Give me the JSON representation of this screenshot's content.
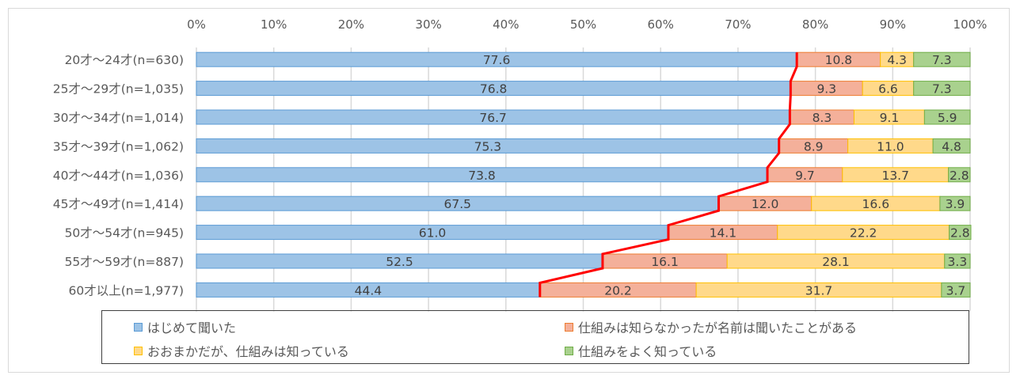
{
  "chart_data": {
    "type": "bar",
    "orientation": "horizontal",
    "stacked": true,
    "percent": true,
    "xlim": [
      0,
      100
    ],
    "x_ticks": [
      "0%",
      "10%",
      "20%",
      "30%",
      "40%",
      "50%",
      "60%",
      "70%",
      "80%",
      "90%",
      "100%"
    ],
    "categories": [
      "20才〜24才(n=630)",
      "25才〜29才(n=1,035)",
      "30才〜34才(n=1,014)",
      "35才〜39才(n=1,062)",
      "40才〜44才(n=1,036)",
      "45才〜49才(n=1,414)",
      "50才〜54才(n=945)",
      "55才〜59才(n=887)",
      "60才以上(n=1,977)"
    ],
    "series": [
      {
        "name": "はじめて聞いた",
        "color": "#9dc3e6",
        "border": "#5b9bd5",
        "values": [
          77.6,
          76.8,
          76.7,
          75.3,
          73.8,
          67.5,
          61.0,
          52.5,
          44.4
        ]
      },
      {
        "name": "仕組みは知らなかったが名前は聞いたことがある",
        "color": "#f4b09a",
        "border": "#ed7d31",
        "values": [
          10.8,
          9.3,
          8.3,
          8.9,
          9.7,
          12.0,
          14.1,
          16.1,
          20.2
        ]
      },
      {
        "name": "おおまかだが、仕組みは知っている",
        "color": "#ffd98a",
        "border": "#ffc000",
        "values": [
          4.3,
          6.6,
          9.1,
          11.0,
          13.7,
          16.6,
          22.2,
          28.1,
          31.7
        ]
      },
      {
        "name": "仕組みをよく知っている",
        "color": "#a9d18e",
        "border": "#70ad47",
        "values": [
          7.3,
          7.3,
          5.9,
          4.8,
          2.8,
          3.9,
          2.8,
          3.3,
          3.7
        ]
      }
    ],
    "series_line": {
      "connects": "はじめて聞いた",
      "color": "#ff0000"
    },
    "grid": true,
    "legend_position": "bottom"
  }
}
